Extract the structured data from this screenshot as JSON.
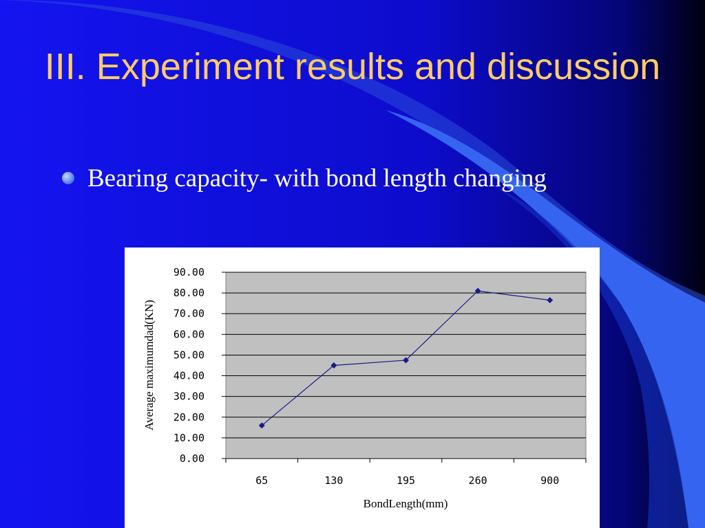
{
  "slide": {
    "title": "III. Experiment results and discussion",
    "bullet": "Bearing capacity- with bond length changing"
  },
  "colors": {
    "background": "#1010e8",
    "title": "#ffcc66",
    "text": "#ffffff",
    "plot_area": "#c0c0c0",
    "series": "#1a1a8a"
  },
  "chart_data": {
    "type": "line",
    "categories": [
      "65",
      "130",
      "195",
      "260",
      "900"
    ],
    "series": [
      {
        "values": [
          16.0,
          45.0,
          47.5,
          81.0,
          76.5
        ]
      }
    ],
    "xlabel": "BondLength(mm)",
    "ylabel": "Average maximumdad(KN)",
    "ylim": [
      0,
      90
    ],
    "yticks": [
      "0.00",
      "10.00",
      "20.00",
      "30.00",
      "40.00",
      "50.00",
      "60.00",
      "70.00",
      "80.00",
      "90.00"
    ],
    "grid": true,
    "legend": "none"
  }
}
